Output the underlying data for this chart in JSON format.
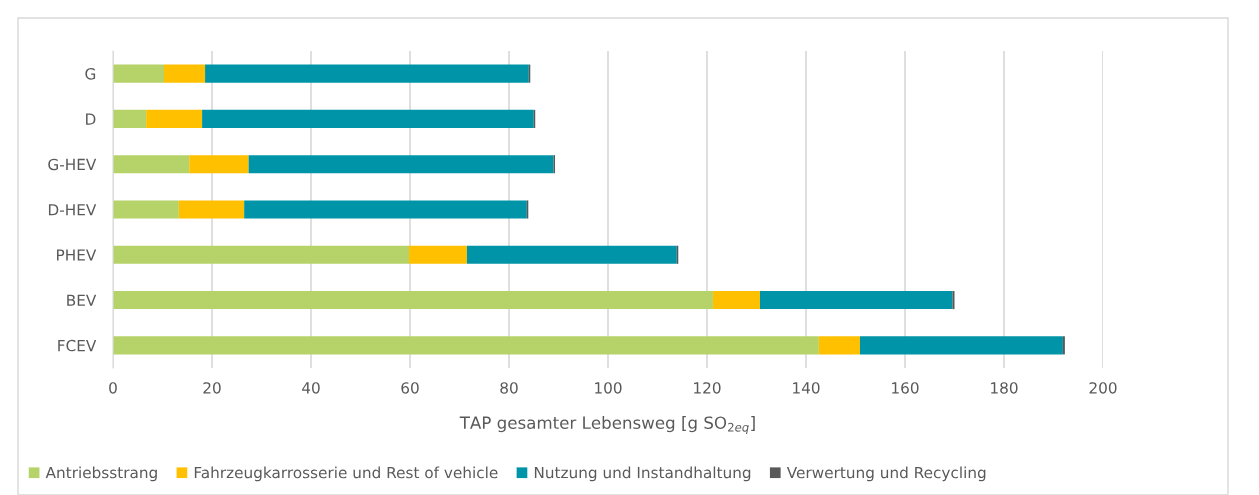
{
  "chart_data": {
    "type": "bar",
    "orientation": "horizontal",
    "stacked": true,
    "categories": [
      "G",
      "D",
      "G-HEV",
      "D-HEV",
      "PHEV",
      "BEV",
      "FCEV"
    ],
    "series": [
      {
        "name": "Antriebsstrang",
        "color": "#b6d369",
        "values": [
          10.3,
          6.7,
          15.4,
          13.3,
          59.8,
          121.2,
          142.6
        ]
      },
      {
        "name": "Fahrzeugkarrosserie und Rest of vehicle",
        "color": "#ffc000",
        "values": [
          8.3,
          11.3,
          12.0,
          13.2,
          11.7,
          9.5,
          8.3
        ]
      },
      {
        "name": "Nutzung und Instandhaltung",
        "color": "#0094a8",
        "values": [
          65.4,
          67.0,
          61.6,
          57.1,
          42.4,
          38.9,
          41.0
        ]
      },
      {
        "name": "Verwertung und Recycling",
        "color": "#595959",
        "values": [
          0.3,
          0.3,
          0.3,
          0.3,
          0.3,
          0.4,
          0.4
        ]
      }
    ],
    "xlabel": "TAP gesamter Lebensweg [g SO$_{2eq}$]",
    "xlim": [
      0,
      200
    ],
    "xticks": [
      0,
      20,
      40,
      60,
      80,
      100,
      120,
      140,
      160,
      180,
      200
    ],
    "grid": "x",
    "legend": "bottom"
  }
}
